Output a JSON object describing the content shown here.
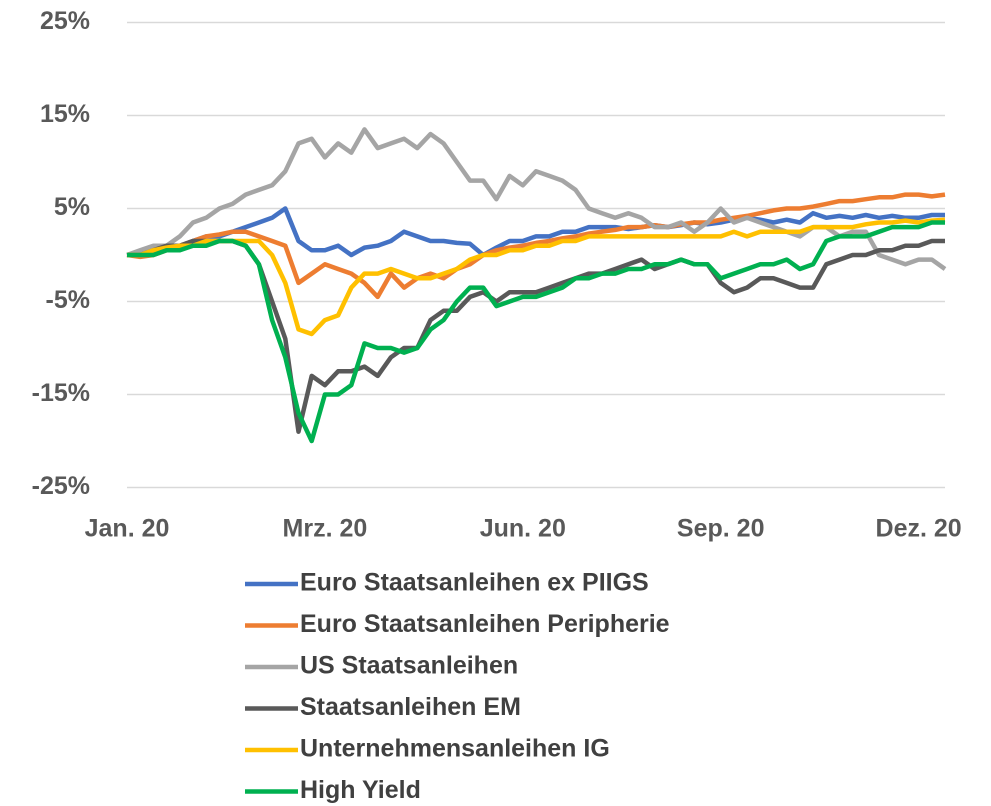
{
  "chart_data": {
    "type": "line",
    "categories": [
      "Jan. 20",
      null,
      null,
      null,
      null,
      null,
      null,
      null,
      null,
      null,
      null,
      null,
      null,
      null,
      null,
      "Mrz. 20",
      null,
      null,
      null,
      null,
      null,
      null,
      null,
      null,
      null,
      null,
      null,
      null,
      null,
      null,
      "Jun. 20",
      null,
      null,
      null,
      null,
      null,
      null,
      null,
      null,
      null,
      null,
      null,
      null,
      null,
      null,
      "Sep. 20",
      null,
      null,
      null,
      null,
      null,
      null,
      null,
      null,
      null,
      null,
      null,
      null,
      null,
      null,
      "Dez. 20",
      null,
      null
    ],
    "ylim": [
      -25,
      25
    ],
    "yticks": [
      {
        "value": -25,
        "label": "-25%"
      },
      {
        "value": -15,
        "label": "-15%"
      },
      {
        "value": -5,
        "label": "-5%"
      },
      {
        "value": 5,
        "label": "5%"
      },
      {
        "value": 15,
        "label": "15%"
      },
      {
        "value": 25,
        "label": "25%"
      }
    ],
    "grid": true,
    "legend": "bottom",
    "series": [
      {
        "name": "Euro Staatsanleihen ex PIIGS",
        "color": "#4472c4",
        "values": [
          0,
          0.3,
          0.5,
          0.8,
          1,
          1.5,
          2,
          2,
          2.5,
          3,
          3.5,
          4,
          5,
          1.5,
          0.5,
          0.5,
          1,
          0,
          0.8,
          1,
          1.5,
          2.5,
          2,
          1.5,
          1.5,
          1.3,
          1.2,
          0,
          0.8,
          1.5,
          1.5,
          2,
          2,
          2.5,
          2.5,
          3,
          3,
          3,
          2.8,
          3,
          3.2,
          3,
          3.2,
          3.5,
          3.3,
          3.5,
          3.8,
          4,
          3.8,
          3.5,
          3.8,
          3.5,
          4.5,
          4,
          4.2,
          4,
          4.3,
          4,
          4.2,
          4,
          4,
          4.3,
          4.3
        ]
      },
      {
        "name": "Euro Staatsanleihen Peripherie",
        "color": "#ed7d31",
        "values": [
          0,
          -0.2,
          0,
          0.5,
          1,
          1.5,
          2,
          2.2,
          2.5,
          2.5,
          2,
          1.5,
          1,
          -3,
          -2,
          -1,
          -1.5,
          -2,
          -3,
          -4.5,
          -2,
          -3.5,
          -2.5,
          -2,
          -2.5,
          -1.5,
          -1,
          0,
          0.5,
          0.8,
          1,
          1.3,
          1.5,
          1.8,
          2,
          2.3,
          2.5,
          2.7,
          3,
          3,
          3.2,
          3,
          3.3,
          3.5,
          3.5,
          3.8,
          4,
          4.2,
          4.5,
          4.8,
          5,
          5,
          5.2,
          5.5,
          5.8,
          5.8,
          6,
          6.2,
          6.2,
          6.5,
          6.5,
          6.3,
          6.5
        ]
      },
      {
        "name": "US Staatsanleihen",
        "color": "#a5a5a5",
        "values": [
          0,
          0.5,
          1,
          1,
          2,
          3.5,
          4,
          5,
          5.5,
          6.5,
          7,
          7.5,
          9,
          12,
          12.5,
          10.5,
          12,
          11,
          13.5,
          11.5,
          12,
          12.5,
          11.5,
          13,
          12,
          10,
          8,
          8,
          6,
          8.5,
          7.5,
          9,
          8.5,
          8,
          7,
          5,
          4.5,
          4,
          4.5,
          4,
          3,
          3,
          3.5,
          2.5,
          3.5,
          5,
          3.5,
          4,
          3.5,
          3,
          2.5,
          2,
          3,
          3,
          2,
          2.5,
          2.5,
          0,
          -0.5,
          -1,
          -0.5,
          -0.5,
          -1.5
        ]
      },
      {
        "name": "Staatsanleihen EM",
        "color": "#595959",
        "values": [
          0,
          0,
          0.5,
          1,
          1,
          1.5,
          1.5,
          1.5,
          1.5,
          1,
          -1,
          -5,
          -9,
          -19,
          -13,
          -14,
          -12.5,
          -12.5,
          -12,
          -13,
          -11,
          -10,
          -10,
          -7,
          -6,
          -6,
          -4.5,
          -4,
          -5,
          -4,
          -4,
          -4,
          -3.5,
          -3,
          -2.5,
          -2,
          -2,
          -1.5,
          -1,
          -0.5,
          -1.5,
          -1,
          -0.5,
          -1,
          -1,
          -3,
          -4,
          -3.5,
          -2.5,
          -2.5,
          -3,
          -3.5,
          -3.5,
          -1,
          -0.5,
          0,
          0,
          0.5,
          0.5,
          1,
          1,
          1.5,
          1.5
        ]
      },
      {
        "name": "Unternehmensanleihen IG",
        "color": "#ffc000",
        "values": [
          0,
          0,
          0.5,
          0.8,
          1,
          1,
          1.5,
          1.5,
          1.5,
          1.5,
          1.5,
          0,
          -3,
          -8,
          -8.5,
          -7,
          -6.5,
          -3.5,
          -2,
          -2,
          -1.5,
          -2,
          -2.5,
          -2.5,
          -2,
          -1.5,
          -0.5,
          0,
          0,
          0.5,
          0.5,
          1,
          1,
          1.5,
          1.5,
          2,
          2,
          2,
          2,
          2,
          2,
          2,
          2,
          2,
          2,
          2,
          2.5,
          2,
          2.5,
          2.5,
          2.5,
          2.5,
          3,
          3,
          3,
          3,
          3.3,
          3.5,
          3.5,
          3.7,
          3.5,
          3.7,
          3.8
        ]
      },
      {
        "name": "High Yield",
        "color": "#00b050",
        "values": [
          0,
          0,
          0,
          0.5,
          0.5,
          1,
          1,
          1.5,
          1.5,
          1,
          -1,
          -7,
          -11,
          -17,
          -20,
          -15,
          -15,
          -14,
          -9.5,
          -10,
          -10,
          -10.5,
          -10,
          -8,
          -7,
          -5,
          -3.5,
          -3.5,
          -5.5,
          -5,
          -4.5,
          -4.5,
          -4,
          -3.5,
          -2.5,
          -2.5,
          -2,
          -2,
          -1.5,
          -1.5,
          -1,
          -1,
          -0.5,
          -1,
          -1,
          -2.5,
          -2,
          -1.5,
          -1,
          -1,
          -0.5,
          -1.5,
          -1,
          1.5,
          2,
          2,
          2,
          2.5,
          3,
          3,
          3,
          3.5,
          3.5
        ]
      }
    ]
  }
}
